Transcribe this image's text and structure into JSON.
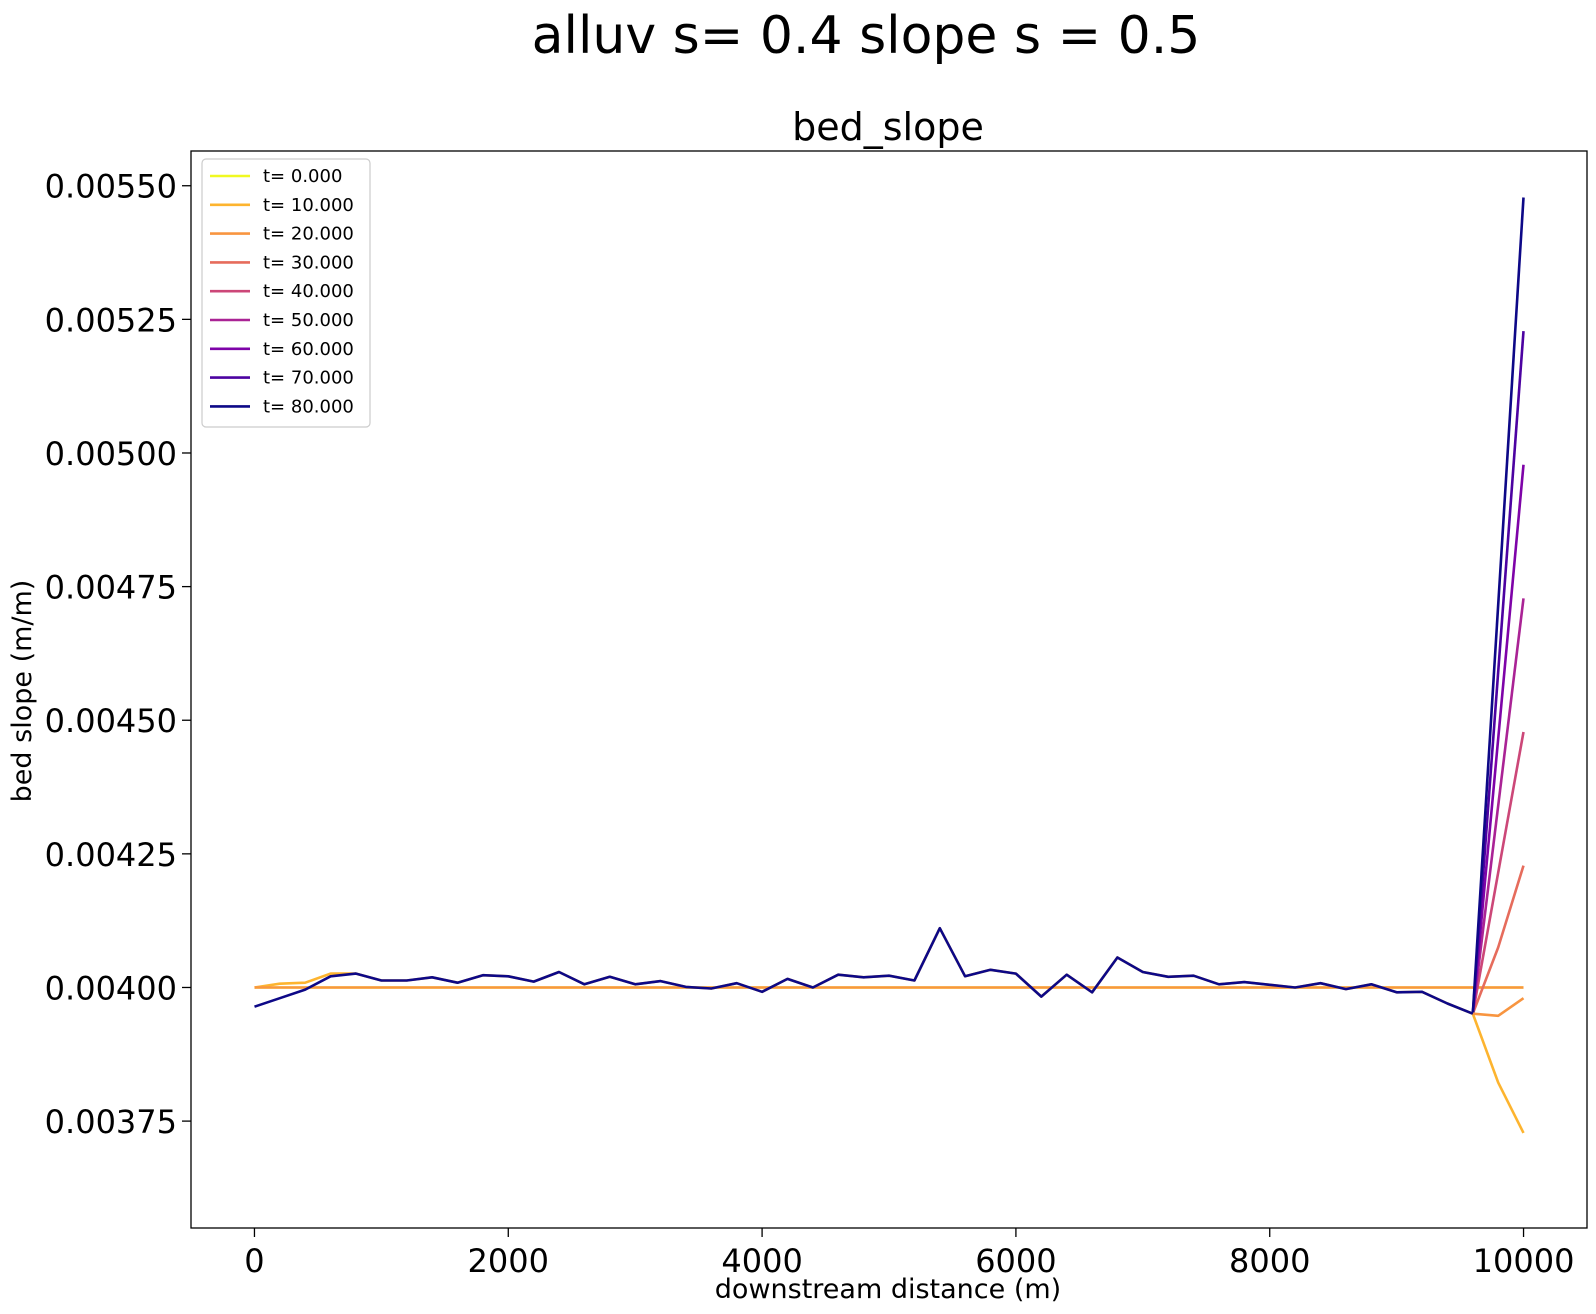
{
  "figure": {
    "suptitle": "alluv s= 0.4     slope s = 0.5"
  },
  "chart_data": {
    "type": "line",
    "title": "bed_slope",
    "xlabel": "downstream distance (m)",
    "ylabel": "bed slope (m/m)",
    "xlim": [
      -500,
      10500
    ],
    "ylim": [
      0.00355,
      0.005565
    ],
    "xticks": [
      0,
      2000,
      4000,
      6000,
      8000,
      10000
    ],
    "xtick_labels": [
      "0",
      "2000",
      "4000",
      "6000",
      "8000",
      "10000"
    ],
    "yticks": [
      0.00375,
      0.004,
      0.00425,
      0.0045,
      0.00475,
      0.005,
      0.00525,
      0.0055
    ],
    "ytick_labels": [
      "0.00375",
      "0.00400",
      "0.00425",
      "0.00450",
      "0.00475",
      "0.00500",
      "0.00525",
      "0.00550"
    ],
    "grid": false,
    "legend_position": "top-left",
    "common_x": [
      0,
      200,
      400,
      600,
      800,
      1000,
      1200,
      1400,
      1600,
      1800,
      2000,
      2200,
      2400,
      2600,
      2800,
      3000,
      3200,
      3400,
      3600,
      3800,
      4000,
      4200,
      4400,
      4600,
      4800,
      5000,
      5200,
      5400,
      5600,
      5800,
      6000,
      6200,
      6400,
      6600,
      6800,
      7000,
      7200,
      7400,
      7600,
      7800,
      8000,
      8200,
      8400,
      8600,
      8800,
      9000,
      9200,
      9400,
      9600
    ],
    "common_profile": [
      0.003964,
      0.00398,
      0.003996,
      0.004021,
      0.004026,
      0.004013,
      0.004013,
      0.004019,
      0.004009,
      0.004023,
      0.004021,
      0.004011,
      0.004029,
      0.004006,
      0.00402,
      0.004006,
      0.004012,
      0.004001,
      0.003998,
      0.004008,
      0.003992,
      0.004016,
      0.004,
      0.004024,
      0.004019,
      0.004022,
      0.004013,
      0.004111,
      0.004021,
      0.004033,
      0.004026,
      0.003983,
      0.004024,
      0.003991,
      0.004056,
      0.004029,
      0.00402,
      0.004022,
      0.004006,
      0.00401,
      0.004005,
      0.004,
      0.004008,
      0.003997,
      0.004006,
      0.003991,
      0.003992,
      0.00397,
      0.003951
    ],
    "series": [
      {
        "name": "t= 0.000",
        "color": "#f0f921",
        "x": [
          0,
          10000
        ],
        "y": [
          0.004,
          0.004
        ]
      },
      {
        "name": "t= 10.000",
        "color": "#fdb42f",
        "x": [
          0,
          200,
          400,
          600,
          800,
          1000,
          1200,
          1400,
          1600,
          1800,
          2000,
          2200,
          2400,
          2600,
          2800,
          3000,
          3200,
          3400,
          3600,
          3800,
          4000,
          4200,
          4400,
          4600,
          4800,
          5000,
          5200,
          5400,
          5600,
          5800,
          6000,
          6200,
          6400,
          6600,
          6800,
          7000,
          7200,
          7400,
          7600,
          7800,
          8000,
          8200,
          8400,
          8600,
          8800,
          9000,
          9200,
          9400,
          9600,
          9800,
          10000
        ],
        "y": [
          0.004,
          0.004007,
          0.004009,
          0.004026,
          0.004026,
          0.004013,
          0.004013,
          0.004019,
          0.004009,
          0.004023,
          0.004021,
          0.004011,
          0.004029,
          0.004006,
          0.00402,
          0.004006,
          0.004012,
          0.004001,
          0.003998,
          0.004008,
          0.003992,
          0.004016,
          0.004,
          0.004024,
          0.004019,
          0.004022,
          0.004013,
          0.004111,
          0.004021,
          0.004033,
          0.004026,
          0.003983,
          0.004024,
          0.003991,
          0.004056,
          0.004029,
          0.00402,
          0.004022,
          0.004006,
          0.00401,
          0.004005,
          0.004,
          0.004008,
          0.003997,
          0.004006,
          0.003991,
          0.003992,
          0.00397,
          0.003951,
          0.003822,
          0.003728
        ]
      },
      {
        "name": "t= 20.000",
        "color": "#f89540",
        "x": [
          0,
          10000
        ],
        "y": [
          0.004,
          0.004
        ]
      },
      {
        "name": "t= 30.000",
        "color": "#e66c5c",
        "x": [
          9600,
          9800,
          10000
        ],
        "y": [
          0.003951,
          0.004075,
          0.004228
        ]
      },
      {
        "name": "t= 40.000",
        "color": "#cc4778",
        "x": [
          9600,
          10000
        ],
        "y": [
          0.003951,
          0.004478
        ]
      },
      {
        "name": "t= 50.000",
        "color": "#aa2395",
        "x": [
          9600,
          10000
        ],
        "y": [
          0.003951,
          0.004728
        ]
      },
      {
        "name": "t= 60.000",
        "color": "#7e03a8",
        "x": [
          9600,
          10000
        ],
        "y": [
          0.003951,
          0.004978
        ]
      },
      {
        "name": "t= 70.000",
        "color": "#4c02a1",
        "x": [
          9600,
          10000
        ],
        "y": [
          0.003951,
          0.005228
        ]
      },
      {
        "name": "t= 80.000",
        "color": "#0d0887",
        "x": [
          9600,
          10000
        ],
        "y": [
          0.003951,
          0.005478
        ]
      }
    ],
    "tail_t20": {
      "x": [
        9600,
        9800,
        10000
      ],
      "y": [
        0.003951,
        0.003947,
        0.00398
      ]
    }
  }
}
